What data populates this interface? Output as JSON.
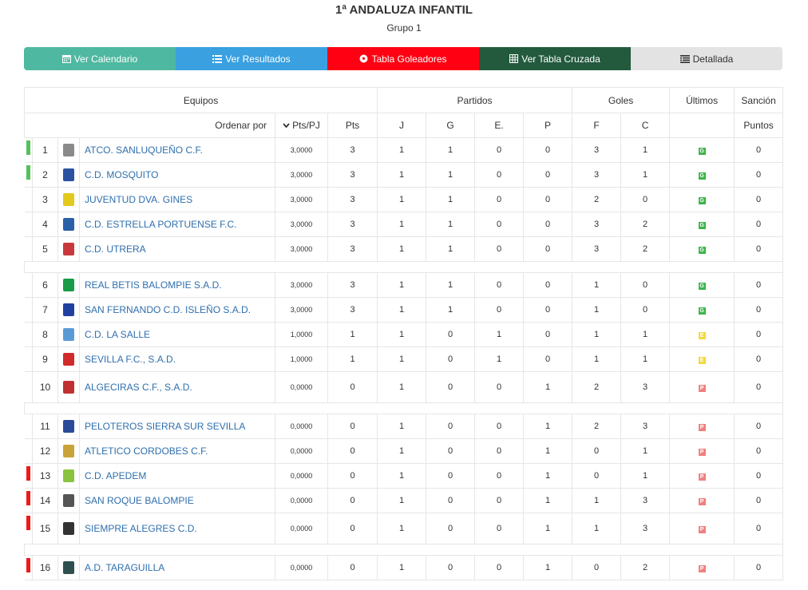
{
  "title": "1ª ANDALUZA INFANTIL",
  "subtitle": "Grupo 1",
  "buttons": [
    {
      "label": "Ver Calendario",
      "icon": "calendar-icon",
      "color": "#4fb8a0"
    },
    {
      "label": "Ver Resultados",
      "icon": "list-icon",
      "color": "#3aa0e0"
    },
    {
      "label": "Tabla Goleadores",
      "icon": "soccer-ball-icon",
      "color": "#fe0012"
    },
    {
      "label": "Ver Tabla Cruzada",
      "icon": "grid-table-icon",
      "color": "#235a3e"
    },
    {
      "label": "Detallada",
      "icon": "detail-list-icon",
      "color": "#e3e3e3"
    }
  ],
  "headers": {
    "equipos": "Equipos",
    "partidos": "Partidos",
    "goles": "Goles",
    "ultimos": "Últimos",
    "sancion": "Sanción",
    "ordenar_por": "Ordenar por",
    "pts_pj": "Pts/PJ",
    "pts": "Pts",
    "j": "J",
    "g": "G",
    "e": "E.",
    "p": "P",
    "f": "F",
    "c": "C",
    "puntos": "Puntos"
  },
  "teams": [
    {
      "pos": "1",
      "name": "ATCO. SANLUQUEÑO C.F.",
      "pts_pj": "3,0000",
      "pts": "3",
      "j": "1",
      "g": "1",
      "e": "0",
      "p": "0",
      "f": "3",
      "c": "1",
      "last": "G",
      "sancion": "0",
      "indicator": "green",
      "crest_color": "#8a8a8a"
    },
    {
      "pos": "2",
      "name": "C.D. MOSQUITO",
      "pts_pj": "3,0000",
      "pts": "3",
      "j": "1",
      "g": "1",
      "e": "0",
      "p": "0",
      "f": "3",
      "c": "1",
      "last": "G",
      "sancion": "0",
      "indicator": "green",
      "crest_color": "#2a52a0"
    },
    {
      "pos": "3",
      "name": "JUVENTUD DVA. GINES",
      "pts_pj": "3,0000",
      "pts": "3",
      "j": "1",
      "g": "1",
      "e": "0",
      "p": "0",
      "f": "2",
      "c": "0",
      "last": "G",
      "sancion": "0",
      "indicator": "",
      "crest_color": "#e2c91c"
    },
    {
      "pos": "4",
      "name": "C.D. ESTRELLA PORTUENSE F.C.",
      "pts_pj": "3,0000",
      "pts": "3",
      "j": "1",
      "g": "1",
      "e": "0",
      "p": "0",
      "f": "3",
      "c": "2",
      "last": "G",
      "sancion": "0",
      "indicator": "",
      "crest_color": "#2b5fa8"
    },
    {
      "pos": "5",
      "name": "C.D. UTRERA",
      "pts_pj": "3,0000",
      "pts": "3",
      "j": "1",
      "g": "1",
      "e": "0",
      "p": "0",
      "f": "3",
      "c": "2",
      "last": "G",
      "sancion": "0",
      "indicator": "",
      "crest_color": "#c9383c"
    },
    {
      "pos": "6",
      "name": "REAL BETIS BALOMPIE S.A.D.",
      "pts_pj": "3,0000",
      "pts": "3",
      "j": "1",
      "g": "1",
      "e": "0",
      "p": "0",
      "f": "1",
      "c": "0",
      "last": "G",
      "sancion": "0",
      "indicator": "",
      "crest_color": "#1a9b48"
    },
    {
      "pos": "7",
      "name": "SAN FERNANDO C.D. ISLEÑO S.A.D.",
      "pts_pj": "3,0000",
      "pts": "3",
      "j": "1",
      "g": "1",
      "e": "0",
      "p": "0",
      "f": "1",
      "c": "0",
      "last": "G",
      "sancion": "0",
      "indicator": "",
      "crest_color": "#2040a0"
    },
    {
      "pos": "8",
      "name": "C.D. LA SALLE",
      "pts_pj": "1,0000",
      "pts": "1",
      "j": "1",
      "g": "0",
      "e": "1",
      "p": "0",
      "f": "1",
      "c": "1",
      "last": "E",
      "sancion": "0",
      "indicator": "",
      "crest_color": "#5b9bd5"
    },
    {
      "pos": "9",
      "name": "SEVILLA F.C., S.A.D.",
      "pts_pj": "1,0000",
      "pts": "1",
      "j": "1",
      "g": "0",
      "e": "1",
      "p": "0",
      "f": "1",
      "c": "1",
      "last": "E",
      "sancion": "0",
      "indicator": "",
      "crest_color": "#d02a2a"
    },
    {
      "pos": "10",
      "name": "ALGECIRAS C.F., S.A.D.",
      "pts_pj": "0,0000",
      "pts": "0",
      "j": "1",
      "g": "0",
      "e": "0",
      "p": "1",
      "f": "2",
      "c": "3",
      "last": "P",
      "sancion": "0",
      "indicator": "",
      "crest_color": "#c03030"
    },
    {
      "pos": "11",
      "name": "PELOTEROS SIERRA SUR SEVILLA",
      "pts_pj": "0,0000",
      "pts": "0",
      "j": "1",
      "g": "0",
      "e": "0",
      "p": "1",
      "f": "2",
      "c": "3",
      "last": "P",
      "sancion": "0",
      "indicator": "",
      "crest_color": "#2a4a9a"
    },
    {
      "pos": "12",
      "name": "ATLETICO CORDOBES C.F.",
      "pts_pj": "0,0000",
      "pts": "0",
      "j": "1",
      "g": "0",
      "e": "0",
      "p": "1",
      "f": "0",
      "c": "1",
      "last": "P",
      "sancion": "0",
      "indicator": "",
      "crest_color": "#c9a33a"
    },
    {
      "pos": "13",
      "name": "C.D. APEDEM",
      "pts_pj": "0,0000",
      "pts": "0",
      "j": "1",
      "g": "0",
      "e": "0",
      "p": "1",
      "f": "0",
      "c": "1",
      "last": "P",
      "sancion": "0",
      "indicator": "red",
      "crest_color": "#8ac43f"
    },
    {
      "pos": "14",
      "name": "SAN ROQUE BALOMPIE",
      "pts_pj": "0,0000",
      "pts": "0",
      "j": "1",
      "g": "0",
      "e": "0",
      "p": "1",
      "f": "1",
      "c": "3",
      "last": "P",
      "sancion": "0",
      "indicator": "red",
      "crest_color": "#555555"
    },
    {
      "pos": "15",
      "name": "SIEMPRE ALEGRES C.D.",
      "pts_pj": "0,0000",
      "pts": "0",
      "j": "1",
      "g": "0",
      "e": "0",
      "p": "1",
      "f": "1",
      "c": "3",
      "last": "P",
      "sancion": "0",
      "indicator": "red",
      "crest_color": "#333333"
    },
    {
      "pos": "16",
      "name": "A.D. TARAGUILLA",
      "pts_pj": "0,0000",
      "pts": "0",
      "j": "1",
      "g": "0",
      "e": "0",
      "p": "1",
      "f": "0",
      "c": "2",
      "last": "P",
      "sancion": "0",
      "indicator": "red",
      "crest_color": "#2f4f4f"
    }
  ],
  "colors": {
    "link": "#2f6fad",
    "indicator_green": "#55c15a",
    "indicator_red": "#ef1a1a",
    "badge_G": "#3cb54a",
    "badge_E": "#f2da3c",
    "badge_P": "#f08080"
  }
}
